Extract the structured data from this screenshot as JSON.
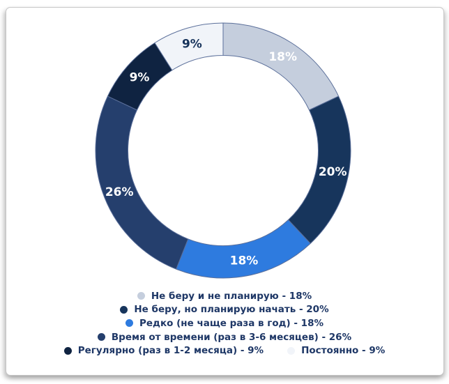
{
  "chart_data": {
    "type": "donut",
    "title": "",
    "start_angle_deg": 0,
    "direction": "clockwise",
    "stroke_color": "#5b6f9a",
    "legend_text_color": "#1e3766",
    "slices": [
      {
        "label": "Не беру и не планирую",
        "value": 18,
        "display": "18%",
        "color": "#c5cedd",
        "value_label_color": "#ffffff"
      },
      {
        "label": "Не беру, но планирую начать",
        "value": 20,
        "display": "20%",
        "color": "#17355c",
        "value_label_color": "#ffffff"
      },
      {
        "label": "Редко (не чаще раза в год)",
        "value": 18,
        "display": "18%",
        "color": "#2e7bdf",
        "value_label_color": "#ffffff"
      },
      {
        "label": "Время от времени (раз в 3-6 месяцев)",
        "value": 26,
        "display": "26%",
        "color": "#253f6d",
        "value_label_color": "#ffffff"
      },
      {
        "label": "Регулярно (раз в 1-2 месяца)",
        "value": 9,
        "display": "9%",
        "color": "#0f2341",
        "value_label_color": "#ffffff"
      },
      {
        "label": "Постоянно",
        "value": 9,
        "display": "9%",
        "color": "#f1f4f9",
        "value_label_color": "#16325a"
      }
    ],
    "legend": {
      "position": "bottom",
      "entries": [
        "Не беру и не планирую - 18%",
        "Не беру, но планирую начать - 20%",
        "Редко (не чаще раза в год) - 18%",
        "Время от времени (раз в 3-6 месяцев) - 26%",
        "Регулярно (раз в 1-2 месяца) - 9%",
        "Постоянно - 9%"
      ]
    }
  }
}
